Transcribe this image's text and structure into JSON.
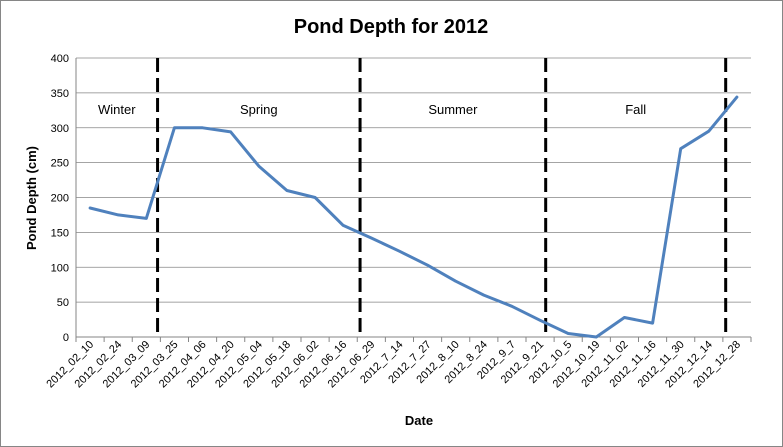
{
  "chart_data": {
    "type": "line",
    "title": "Pond Depth for 2012",
    "xlabel": "Date",
    "ylabel": "Pond Depth (cm)",
    "ylim": [
      0,
      400
    ],
    "yticks": [
      0,
      50,
      100,
      150,
      200,
      250,
      300,
      350,
      400
    ],
    "grid": "horizontal",
    "categories": [
      "2012_02_10",
      "2012_02_24",
      "2012_03_09",
      "2012_03_25",
      "2012_04_06",
      "2012_04_20",
      "2012_05_04",
      "2012_05_18",
      "2012_06_02",
      "2012_06_16",
      "2012_06_29",
      "2012_7_14",
      "2012_7_27",
      "2012_8_10",
      "2012_8_24",
      "2012_9_7",
      "2012_9_21",
      "2012_10_5",
      "2012_10_19",
      "2012_11_02",
      "2012_11_16",
      "2012_11_30",
      "2012_12_14",
      "2012_12_28"
    ],
    "series": [
      {
        "values": [
          185,
          175,
          170,
          300,
          300,
          294,
          245,
          210,
          200,
          160,
          142,
          123,
          103,
          80,
          60,
          44,
          24,
          5,
          0,
          28,
          20,
          270,
          295,
          344
        ]
      }
    ],
    "line_color": "#4f81bd",
    "season_dividers": [
      {
        "after_index": 2.4
      },
      {
        "after_index": 9.6
      },
      {
        "after_index": 16.2
      },
      {
        "after_index": 22.6
      }
    ],
    "seasons": [
      {
        "label": "Winter",
        "start": -0.5,
        "end": 2.4
      },
      {
        "label": "Spring",
        "start": 2.4,
        "end": 9.6
      },
      {
        "label": "Summer",
        "start": 9.6,
        "end": 16.2
      },
      {
        "label": "Fall",
        "start": 16.2,
        "end": 22.6
      }
    ]
  }
}
